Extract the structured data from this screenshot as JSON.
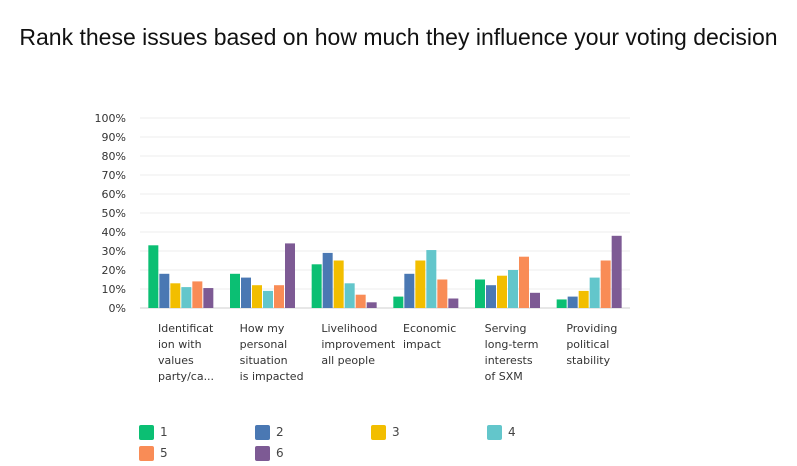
{
  "title": "Rank these issues based on how much they influence your voting decision",
  "chart_data": {
    "type": "bar",
    "title": "Rank these issues based on how much they influence your voting decision",
    "xlabel": "",
    "ylabel": "",
    "ylim": [
      0,
      100
    ],
    "y_ticks": [
      "0%",
      "10%",
      "20%",
      "30%",
      "40%",
      "50%",
      "60%",
      "70%",
      "80%",
      "90%",
      "100%"
    ],
    "categories": [
      [
        "Identificat",
        "ion with",
        "values",
        "party/ca..."
      ],
      [
        "How my",
        "personal",
        "situation",
        "is impacted"
      ],
      [
        "Livelihood",
        "improvement",
        "all people"
      ],
      [
        "Economic",
        "impact"
      ],
      [
        "Serving",
        "long-term",
        "interests",
        "of SXM"
      ],
      [
        "Providing",
        "political",
        "stability"
      ]
    ],
    "series": [
      {
        "name": "1",
        "color": "#0bbf73",
        "values": [
          33,
          18,
          23,
          6,
          15,
          4.5
        ]
      },
      {
        "name": "2",
        "color": "#4a78b3",
        "values": [
          18,
          16,
          29,
          18,
          12,
          6
        ]
      },
      {
        "name": "3",
        "color": "#f2be00",
        "values": [
          13,
          12,
          25,
          25,
          17,
          9
        ]
      },
      {
        "name": "4",
        "color": "#63c6cb",
        "values": [
          11,
          9,
          13,
          30.5,
          20,
          16
        ]
      },
      {
        "name": "5",
        "color": "#f98c56",
        "values": [
          14,
          12,
          7,
          15,
          27,
          25
        ]
      },
      {
        "name": "6",
        "color": "#7d5a94",
        "values": [
          10.5,
          34,
          3,
          5,
          8,
          38
        ]
      }
    ],
    "grid": true,
    "legend_position": "bottom-left"
  }
}
